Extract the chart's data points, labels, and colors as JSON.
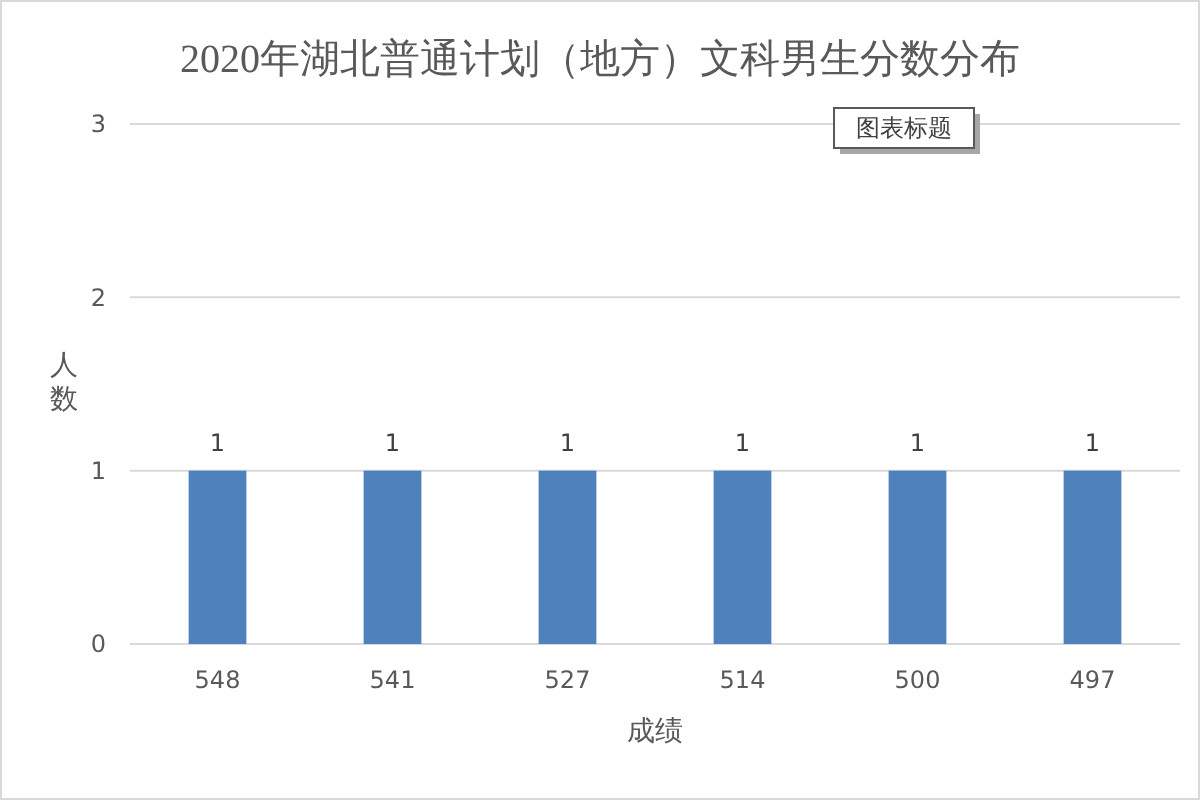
{
  "chart_data": {
    "type": "bar",
    "title": "2020年湖北普通计划（地方）文科男生分数分布",
    "xlabel": "成绩",
    "ylabel": "人数",
    "categories": [
      "548",
      "541",
      "527",
      "514",
      "500",
      "497"
    ],
    "values": [
      1,
      1,
      1,
      1,
      1,
      1
    ],
    "color": "#4f81bd",
    "ylim": [
      0,
      3
    ],
    "yticks": [
      0,
      1,
      2,
      3
    ],
    "grid": "y",
    "data_labels": true,
    "annotations": [
      "图表标题"
    ]
  }
}
